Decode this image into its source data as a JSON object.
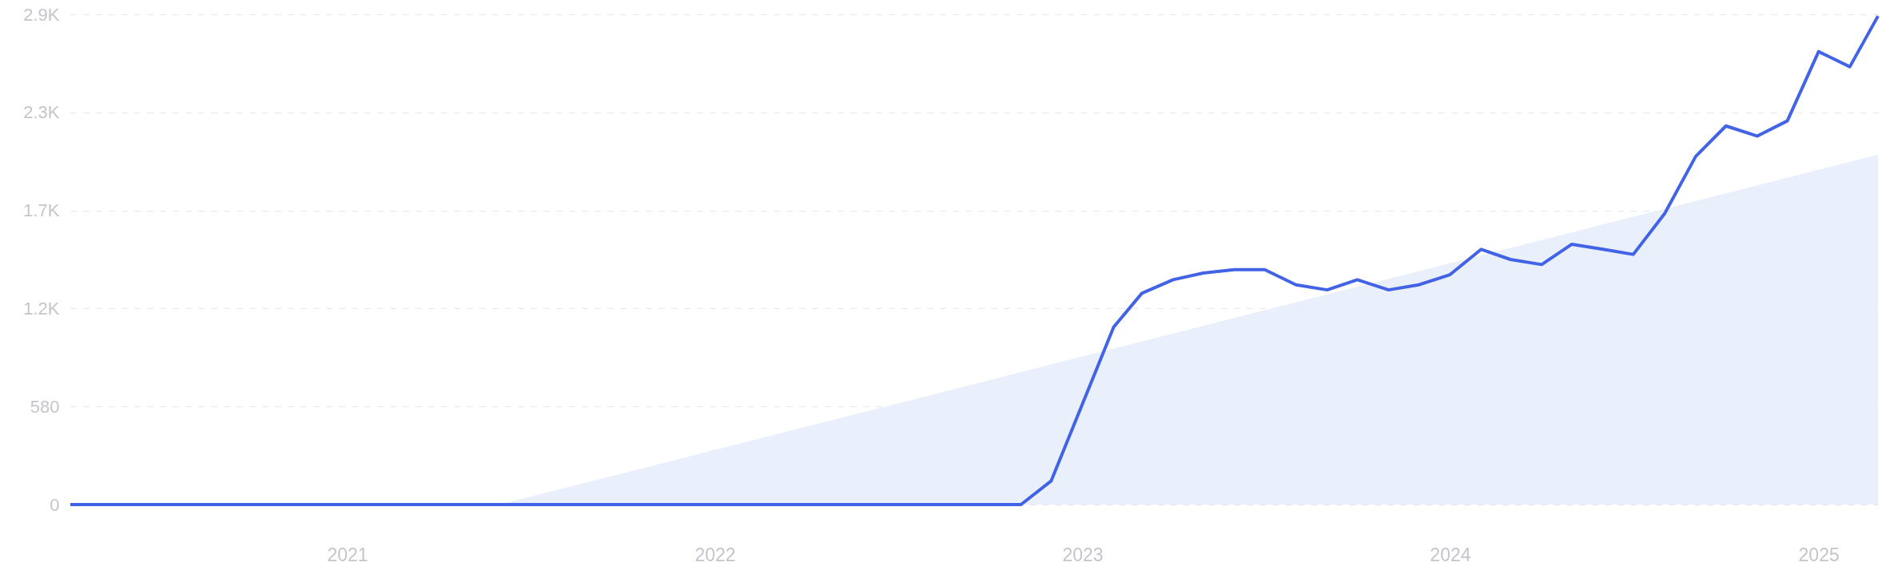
{
  "chart_data": {
    "type": "line",
    "xlim": [
      "2020-04",
      "2025-03"
    ],
    "xticks": [
      {
        "value": "2021",
        "label": "2021"
      },
      {
        "value": "2022",
        "label": "2022"
      },
      {
        "value": "2023",
        "label": "2023"
      },
      {
        "value": "2024",
        "label": "2024"
      },
      {
        "value": "2025",
        "label": "2025"
      }
    ],
    "ylim": [
      0,
      2900
    ],
    "yticks": [
      {
        "value": 0,
        "label": "0"
      },
      {
        "value": 580,
        "label": "580"
      },
      {
        "value": 1160,
        "label": "1.2K"
      },
      {
        "value": 1740,
        "label": "1.7K"
      },
      {
        "value": 2320,
        "label": "2.3K"
      },
      {
        "value": 2900,
        "label": "2.9K"
      }
    ],
    "grid": "y",
    "line_style": "solid",
    "series": [
      {
        "type": "area",
        "color": "#e9f0fb",
        "x": [
          "2021-06",
          "2025-03"
        ],
        "values": [
          0,
          2070
        ]
      },
      {
        "color": "#4263e6",
        "x": [
          "2020-04",
          "2020-05",
          "2020-06",
          "2020-07",
          "2020-08",
          "2020-09",
          "2020-10",
          "2020-11",
          "2020-12",
          "2021-01",
          "2021-02",
          "2021-03",
          "2021-04",
          "2021-05",
          "2021-06",
          "2021-07",
          "2021-08",
          "2021-09",
          "2021-10",
          "2021-11",
          "2021-12",
          "2022-01",
          "2022-02",
          "2022-03",
          "2022-04",
          "2022-05",
          "2022-06",
          "2022-07",
          "2022-08",
          "2022-09",
          "2022-10",
          "2022-11",
          "2022-12",
          "2023-01",
          "2023-02",
          "2023-03",
          "2023-04",
          "2023-05",
          "2023-06",
          "2023-07",
          "2023-08",
          "2023-09",
          "2023-10",
          "2023-11",
          "2023-12",
          "2024-01",
          "2024-02",
          "2024-03",
          "2024-04",
          "2024-05",
          "2024-06",
          "2024-07",
          "2024-08",
          "2024-09",
          "2024-10",
          "2024-11",
          "2024-12",
          "2025-01",
          "2025-02",
          "2025-03"
        ],
        "values": [
          0,
          0,
          0,
          0,
          0,
          0,
          0,
          0,
          0,
          0,
          0,
          0,
          0,
          0,
          0,
          0,
          0,
          0,
          0,
          0,
          0,
          0,
          0,
          0,
          0,
          0,
          0,
          0,
          0,
          0,
          0,
          0,
          140,
          595,
          1050,
          1250,
          1330,
          1370,
          1390,
          1390,
          1300,
          1270,
          1330,
          1270,
          1300,
          1360,
          1510,
          1450,
          1420,
          1540,
          1510,
          1480,
          1720,
          2060,
          2240,
          2180,
          2270,
          2680,
          2590,
          2890
        ]
      }
    ]
  }
}
